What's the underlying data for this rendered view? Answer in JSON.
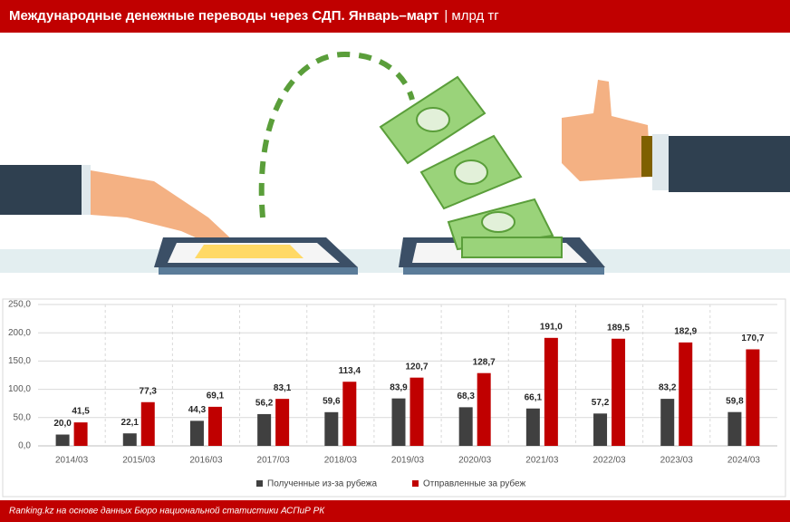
{
  "chart_data": {
    "type": "bar",
    "title": "Международные денежные переводы через СДП. Январь–март",
    "unit": "| млрд тг",
    "source": "Ranking.kz на основе данных Бюро национальной статистики АСПиР РК",
    "categories": [
      "2014/03",
      "2015/03",
      "2016/03",
      "2017/03",
      "2018/03",
      "2019/03",
      "2020/03",
      "2021/03",
      "2022/03",
      "2023/03",
      "2024/03"
    ],
    "series": [
      {
        "name": "Полученные из-за рубежа",
        "color": "#404040",
        "values": [
          20.0,
          22.1,
          44.3,
          56.2,
          59.6,
          83.9,
          68.3,
          66.1,
          57.2,
          83.2,
          59.8
        ],
        "value_labels": [
          "20,0",
          "22,1",
          "44,3",
          "56,2",
          "59,6",
          "83,9",
          "68,3",
          "66,1",
          "57,2",
          "83,2",
          "59,8"
        ]
      },
      {
        "name": "Отправленные за рубеж",
        "color": "#c00000",
        "values": [
          41.5,
          77.3,
          69.1,
          83.1,
          113.4,
          120.7,
          128.7,
          191.0,
          189.5,
          182.9,
          170.7
        ],
        "value_labels": [
          "41,5",
          "77,3",
          "69,1",
          "83,1",
          "113,4",
          "120,7",
          "128,7",
          "191,0",
          "189,5",
          "182,9",
          "170,7"
        ]
      }
    ],
    "ylim": [
      0,
      250
    ],
    "yticks": [
      {
        "value": 0,
        "label": "0,0"
      },
      {
        "value": 50,
        "label": "50,0"
      },
      {
        "value": 100,
        "label": "100,0"
      },
      {
        "value": 150,
        "label": "150,0"
      },
      {
        "value": 200,
        "label": "200,0"
      },
      {
        "value": 250,
        "label": "250,0"
      }
    ],
    "grid": true
  }
}
